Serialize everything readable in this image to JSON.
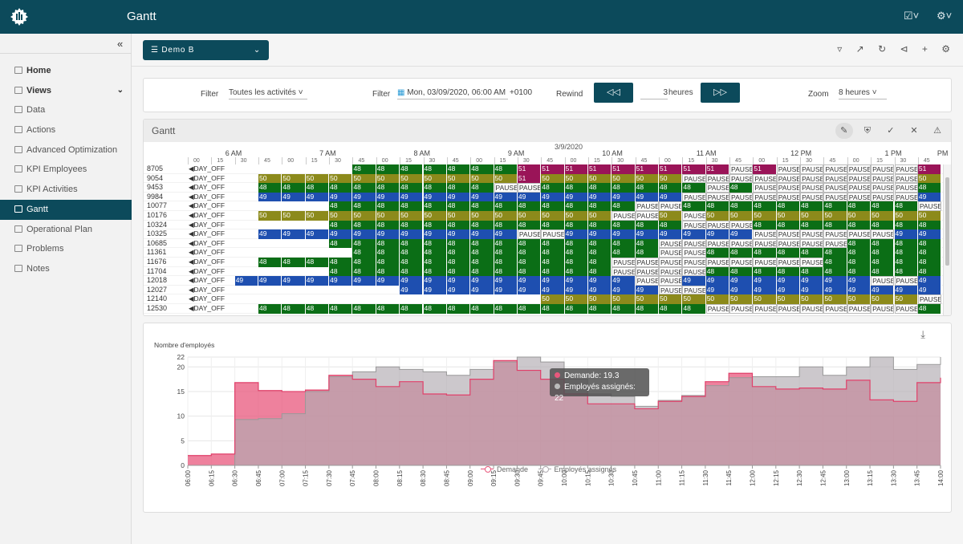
{
  "app": {
    "title": "Gantt",
    "logo_icon": "app-logo-icon"
  },
  "topbar": {
    "icons": [
      "clipboard-icon",
      "gear-icon"
    ]
  },
  "sidebar": {
    "items": [
      {
        "label": "Home",
        "icon": "home-icon",
        "bold": true
      },
      {
        "label": "Views",
        "icon": "views-icon",
        "bold": true,
        "expandable": true
      },
      {
        "label": "Data",
        "icon": "data-icon"
      },
      {
        "label": "Actions",
        "icon": "actions-icon"
      },
      {
        "label": "Advanced Optimization",
        "icon": "optimization-icon"
      },
      {
        "label": "KPI Employees",
        "icon": "kpi-employees-icon"
      },
      {
        "label": "KPI Activities",
        "icon": "kpi-activities-icon"
      },
      {
        "label": "Gantt",
        "icon": "gantt-icon",
        "active": true
      },
      {
        "label": "Operational Plan",
        "icon": "plan-icon"
      },
      {
        "label": "Problems",
        "icon": "problems-icon"
      },
      {
        "label": "Notes",
        "icon": "notes-icon"
      }
    ]
  },
  "scenario_select": {
    "value": "Demo B"
  },
  "toolbar_icons": [
    "filter-icon",
    "open-external-icon",
    "refresh-icon",
    "share-icon",
    "add-icon",
    "settings-icon"
  ],
  "filters": {
    "filter1_label": "Filter",
    "filter1_value": "Toutes les activités",
    "filter2_label": "Filter",
    "filter2_value": "Mon, 03/09/2020, 06:00 AM",
    "filter2_tz": "+0100",
    "rewind_label": "Rewind",
    "rewind_value": "3",
    "rewind_unit": "heures",
    "zoom_label": "Zoom",
    "zoom_value": "8 heures"
  },
  "gantt": {
    "title": "Gantt",
    "date": "3/9/2020",
    "hours": [
      "6 AM",
      "7 AM",
      "8 AM",
      "9 AM",
      "10 AM",
      "11 AM",
      "12 PM",
      "1 PM",
      "PM"
    ],
    "quarters": [
      "00",
      "15",
      "30",
      "45"
    ],
    "colors": {
      "48": "#0b6e16",
      "49": "#1e4fb0",
      "50": "#8c8a1b",
      "51": "#9a1458"
    },
    "rows": [
      {
        "id": "8705",
        "cells": "D......48 48 48 48 48 48 48 51 51 51 51 51 51 51 51 51 P 51 P P P P P P 51 51 51 51 51 51"
      },
      {
        "id": "9054",
        "cells": "D..50 50 50 50 50 50 50 50 50 50 50 51 50 50 50 50 50 50 P P P P P P P P P P 50 50 50 50 50 50"
      },
      {
        "id": "9453",
        "cells": "D..48 48 48 48 48 48 48 48 48 48 P P 48 48 48 48 48 48 48 P 48 P P P P P P P 48 48 48 48 48 48"
      },
      {
        "id": "9984",
        "cells": "D..49 49 49 49 49 49 49 49 49 49 49 49 49 49 49 49 49 49 P P P P P P P P P P 49 49 49 49 49 49"
      },
      {
        "id": "10077",
        "cells": "D..e e e 48 48 48 48 48 48 48 48 48 48 48 48 48 P P 48 48 48 48 48 48 48 48 48 48 P P 48 48 48 48"
      },
      {
        "id": "10176",
        "cells": "D..50 50 50 50 50 50 50 50 50 50 50 50 50 50 50 P P 50 P 50 50 50 50 50 50 50 50 50 50 50 50 50"
      },
      {
        "id": "10324",
        "cells": "D..e e e 48 48 48 48 48 48 48 48 48 48 48 48 48 48 48 P P P 48 48 48 48 48 48 48 48 48 48 48 48"
      },
      {
        "id": "10325",
        "cells": "D..49 49 49 49 49 49 49 49 49 49 49 P P 49 49 49 49 49 49 49 49 P P P P P P 49 49 49 49 49 49"
      },
      {
        "id": "10685",
        "cells": "D..e e e 48 48 48 48 48 48 48 48 48 48 48 48 48 48 P P P P P P P P 48 48 48 48 48 48 48"
      },
      {
        "id": "11361",
        "cells": "D..e e e e 48 48 48 48 48 48 48 48 48 48 48 48 48 P P 48 48 48 48 48 48 48 48 48 48 48 48 48 48"
      },
      {
        "id": "11676",
        "cells": "D..48 48 48 48 48 48 48 48 48 48 48 48 48 48 48 P P P P P P P P P 48 48 48 48 48 48 48 48"
      },
      {
        "id": "11704",
        "cells": "D..e e e 48 48 48 48 48 48 48 48 48 48 48 48 P P P P 48 48 48 48 48 48 48 48 48 48 48 48 48 48"
      },
      {
        "id": "12018",
        "cells": "D.49 49 49 49 49 49 49 49 49 49 49 49 49 49 49 49 49 P P 49 49 49 49 49 49 49 49 P P 49 49 49 49"
      },
      {
        "id": "12027",
        "cells": "D..e e e e e e 49 49 49 49 49 49 49 49 49 49 49 P P 49 49 49 49 49 49 49 49 49 49 49 49 49 49"
      },
      {
        "id": "12140",
        "cells": "D..e e e e e e e e e e e e 50 50 50 50 50 50 50 50 50 50 50 50 50 50 50 50 P P 50 50 50 50"
      },
      {
        "id": "12530",
        "cells": "D..48 48 48 48 48 48 48 48 48 48 48 48 48 48 48 48 48 48 48 P P P P P P P P P 48 48 48 48"
      }
    ]
  },
  "chart_data": {
    "type": "area",
    "ylabel": "Nombre d'employés",
    "ylim": [
      0,
      22
    ],
    "yticks": [
      0,
      5,
      10,
      15,
      20,
      22
    ],
    "x": [
      "06:00",
      "06:15",
      "06:30",
      "06:45",
      "07:00",
      "07:15",
      "07:30",
      "07:45",
      "08:00",
      "08:15",
      "08:30",
      "08:45",
      "09:00",
      "09:15",
      "09:30",
      "09:45",
      "10:00",
      "10:15",
      "10:30",
      "10:45",
      "11:00",
      "11:15",
      "11:30",
      "11:45",
      "12:00",
      "12:15",
      "12:30",
      "12:45",
      "13:00",
      "13:15",
      "13:30",
      "13:45",
      "14:00"
    ],
    "series": [
      {
        "name": "Demande",
        "color": "#e8577c",
        "values": [
          2,
          2.3,
          16.8,
          15.2,
          15,
          15.3,
          18.3,
          17.5,
          16,
          17,
          14.5,
          14.3,
          17.5,
          21.3,
          19.3,
          17.5,
          14.5,
          12.5,
          12.5,
          11.5,
          13,
          14,
          17,
          18.7,
          16,
          15.5,
          15.7,
          15.5,
          17.3,
          13.3,
          13,
          16.8,
          17.8
        ]
      },
      {
        "name": "Employés assignés",
        "color": "#b0aab0",
        "values": [
          0,
          0,
          9.3,
          9.5,
          10.5,
          15,
          18,
          19,
          20,
          19.5,
          19,
          18.3,
          19.5,
          21,
          22,
          21,
          17.5,
          14.5,
          14,
          12,
          13.2,
          14.2,
          16.2,
          17.8,
          18,
          18,
          20,
          18.3,
          20,
          22,
          19.5,
          20.5,
          22
        ]
      }
    ],
    "tooltip": {
      "demande": "Demande: 19.3",
      "assignes": "Employés assignés: 22"
    },
    "legend": [
      "Demande",
      "Employés assignés"
    ]
  }
}
